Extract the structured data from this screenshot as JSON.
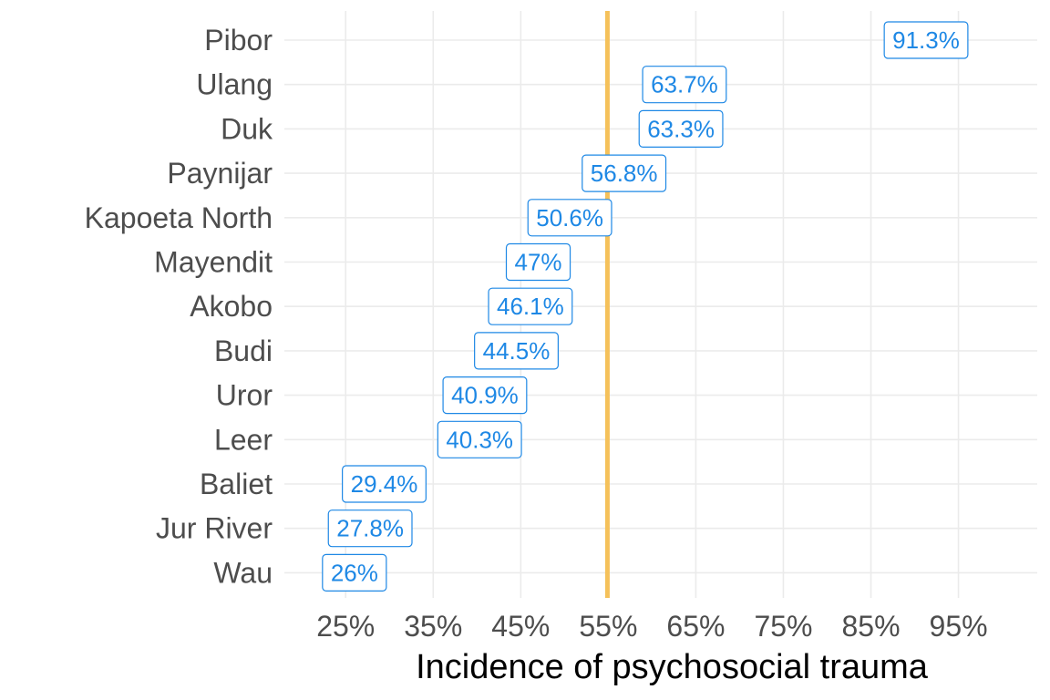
{
  "chart_data": {
    "type": "bar",
    "orientation": "horizontal",
    "mark": "label",
    "categories": [
      "Pibor",
      "Ulang",
      "Duk",
      "Paynijar",
      "Kapoeta North",
      "Mayendit",
      "Akobo",
      "Budi",
      "Uror",
      "Leer",
      "Baliet",
      "Jur River",
      "Wau"
    ],
    "values": [
      91.3,
      63.7,
      63.3,
      56.8,
      50.6,
      47,
      46.1,
      44.5,
      40.9,
      40.3,
      29.4,
      27.8,
      26
    ],
    "value_labels": [
      "91.3%",
      "63.7%",
      "63.3%",
      "56.8%",
      "50.6%",
      "47%",
      "46.1%",
      "44.5%",
      "40.9%",
      "40.3%",
      "29.4%",
      "27.8%",
      "26%"
    ],
    "xlabel": "Incidence of psychosocial trauma",
    "ylabel": "",
    "xlim": [
      18,
      104
    ],
    "xticks": [
      25,
      35,
      45,
      55,
      65,
      75,
      85,
      95
    ],
    "xtick_labels": [
      "25%",
      "35%",
      "45%",
      "55%",
      "65%",
      "75%",
      "85%",
      "95%"
    ],
    "reference_line": {
      "value": 54.9,
      "color": "#f5c15a"
    },
    "label_color": "#1e88e5",
    "grid": true,
    "legend": "none"
  }
}
